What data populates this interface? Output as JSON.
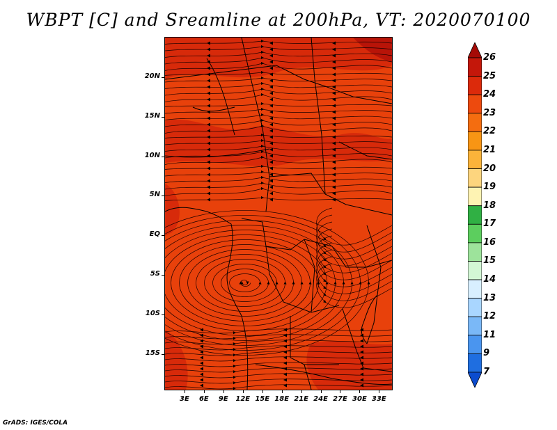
{
  "title": "WBPT [C] and Sreamline at 200hPa, VT: 2020070100",
  "credit": "GrADS: IGES/COLA",
  "map": {
    "variable": "WBPT [C]",
    "overlay": "streamlines",
    "level": "200hPa",
    "valid_time": "2020070100",
    "fill_color_main": "#e8410b",
    "fill_color_warm": "#d4270a",
    "fill_color_hot": "#b81408",
    "lat_labels": [
      {
        "text": "20N",
        "lat": 20
      },
      {
        "text": "15N",
        "lat": 15
      },
      {
        "text": "10N",
        "lat": 10
      },
      {
        "text": "5N",
        "lat": 5
      },
      {
        "text": "EQ",
        "lat": 0
      },
      {
        "text": "5S",
        "lat": -5
      },
      {
        "text": "10S",
        "lat": -10
      },
      {
        "text": "15S",
        "lat": -15
      }
    ],
    "lon_labels": [
      {
        "text": "3E",
        "lon": 3
      },
      {
        "text": "6E",
        "lon": 6
      },
      {
        "text": "9E",
        "lon": 9
      },
      {
        "text": "12E",
        "lon": 12
      },
      {
        "text": "15E",
        "lon": 15
      },
      {
        "text": "18E",
        "lon": 18
      },
      {
        "text": "21E",
        "lon": 21
      },
      {
        "text": "24E",
        "lon": 24
      },
      {
        "text": "27E",
        "lon": 27
      },
      {
        "text": "30E",
        "lon": 30
      },
      {
        "text": "33E",
        "lon": 33
      }
    ],
    "lat_range": [
      -19.5,
      25
    ],
    "lon_range": [
      0,
      35
    ]
  },
  "colorbar": {
    "levels": [
      "26",
      "25",
      "24",
      "23",
      "22",
      "21",
      "20",
      "19",
      "18",
      "17",
      "16",
      "15",
      "14",
      "13",
      "12",
      "11",
      "9",
      "7"
    ],
    "colors": [
      "#a50a06",
      "#c4170a",
      "#dc2a0b",
      "#ed4a0e",
      "#f46d10",
      "#f89514",
      "#fbb33a",
      "#fdd57e",
      "#fef3b3",
      "#30b044",
      "#5cce5e",
      "#9de39b",
      "#d3f7d5",
      "#d8efff",
      "#a9d6ff",
      "#7ab8f7",
      "#4a95ef",
      "#1f6ee0",
      "#0b4ccf"
    ]
  }
}
